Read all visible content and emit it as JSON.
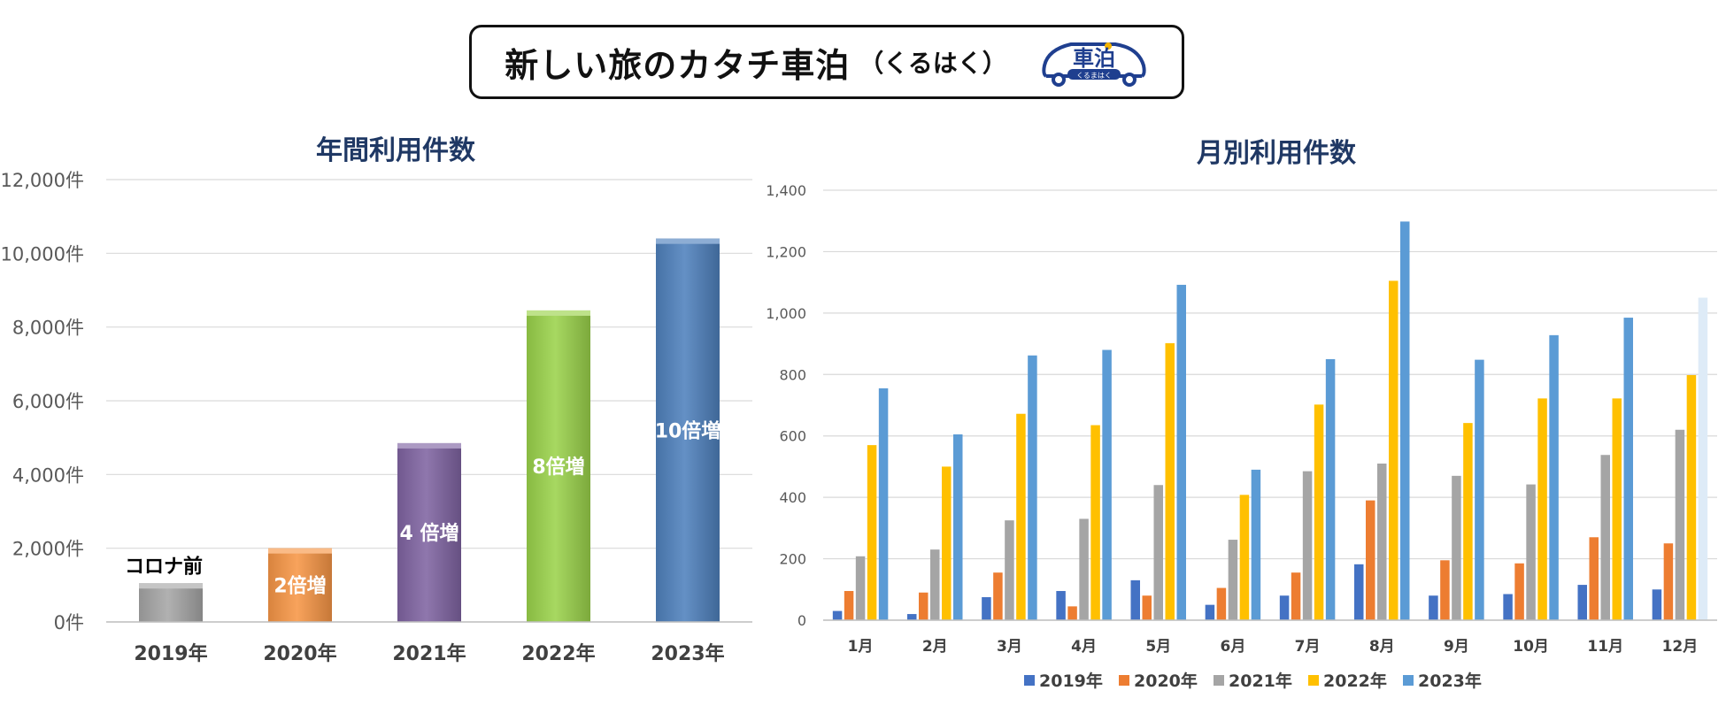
{
  "header": {
    "title": "新しい旅のカタチ車泊",
    "subtitle": "（くるはく）",
    "logo_text": "車泊",
    "logo_subtext": "くるまはく"
  },
  "chart_data": [
    {
      "type": "bar",
      "title": "年間利用件数",
      "categories": [
        "2019年",
        "2020年",
        "2021年",
        "2022年",
        "2023年"
      ],
      "values": [
        1050,
        2000,
        4850,
        8450,
        10400
      ],
      "labels": [
        "コロナ前",
        "2倍増",
        "4 倍増",
        "8倍増",
        "10倍増"
      ],
      "colors": [
        "#a6a6a6",
        "#f79646",
        "#8064a2",
        "#9bd34b",
        "#4f81bd"
      ],
      "ylim": [
        0,
        12000
      ],
      "yticks": [
        "0件",
        "2,000件",
        "4,000件",
        "6,000件",
        "8,000件",
        "10,000件",
        "12,000件"
      ],
      "xlabel": "",
      "ylabel": "",
      "grid": true
    },
    {
      "type": "bar",
      "title": "月別利用件数",
      "categories": [
        "1月",
        "2月",
        "3月",
        "4月",
        "5月",
        "6月",
        "7月",
        "8月",
        "9月",
        "10月",
        "11月",
        "12月"
      ],
      "series": [
        {
          "name": "2019年",
          "color": "#4472c4",
          "values": [
            30,
            20,
            75,
            95,
            130,
            50,
            80,
            182,
            80,
            85,
            115,
            100
          ]
        },
        {
          "name": "2020年",
          "color": "#ed7d31",
          "values": [
            95,
            90,
            155,
            45,
            80,
            105,
            155,
            390,
            195,
            185,
            270,
            250
          ]
        },
        {
          "name": "2021年",
          "color": "#a5a5a5",
          "values": [
            208,
            230,
            325,
            330,
            440,
            262,
            485,
            510,
            470,
            442,
            538,
            620
          ]
        },
        {
          "name": "2022年",
          "color": "#ffc000",
          "values": [
            570,
            500,
            672,
            635,
            902,
            408,
            702,
            1105,
            642,
            722,
            722,
            798
          ]
        },
        {
          "name": "2023年",
          "color": "#5b9bd5",
          "values": [
            755,
            605,
            862,
            880,
            1092,
            490,
            850,
            1298,
            848,
            928,
            985,
            1050
          ]
        }
      ],
      "ylim": [
        0,
        1400
      ],
      "yticks": [
        "0",
        "200",
        "400",
        "600",
        "800",
        "1,000",
        "1,200",
        "1,400"
      ],
      "xlabel": "",
      "ylabel": "",
      "grid": true,
      "legend": "bottom"
    }
  ]
}
